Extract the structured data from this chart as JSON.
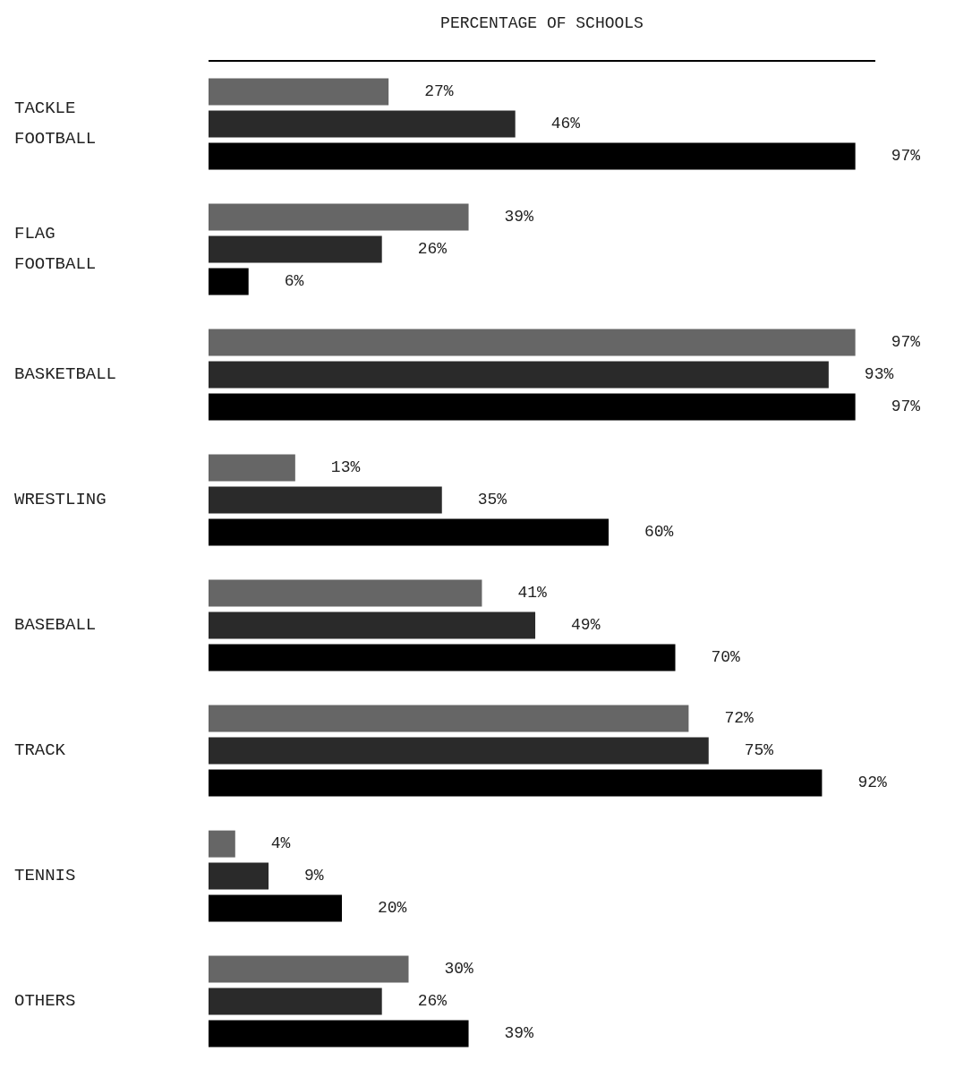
{
  "chart_data": {
    "type": "bar",
    "orientation": "horizontal",
    "xlabel": "PERCENTAGE OF SCHOOLS",
    "categories": [
      "TACKLE FOOTBALL",
      "FLAG FOOTBALL",
      "BASKETBALL",
      "WRESTLING",
      "BASEBALL",
      "TRACK",
      "TENNIS",
      "OTHERS"
    ],
    "series": [
      {
        "color": "#666666",
        "values": [
          27,
          39,
          97,
          13,
          41,
          72,
          4,
          30
        ],
        "value_labels": [
          "27%",
          "39%",
          "97%",
          "13%",
          "41%",
          "72%",
          "4%",
          "30%"
        ]
      },
      {
        "color": "#2a2a2a",
        "values": [
          46,
          26,
          93,
          35,
          49,
          75,
          9,
          26
        ],
        "value_labels": [
          "46%",
          "26%",
          "93%",
          "35%",
          "49%",
          "75%",
          "9%",
          "26%"
        ]
      },
      {
        "color": "#000000",
        "values": [
          97,
          6,
          97,
          60,
          70,
          92,
          20,
          39
        ],
        "value_labels": [
          "97%",
          "6%",
          "97%",
          "60%",
          "70%",
          "92%",
          "20%",
          "39%"
        ]
      }
    ],
    "tick_labels": "y"
  }
}
